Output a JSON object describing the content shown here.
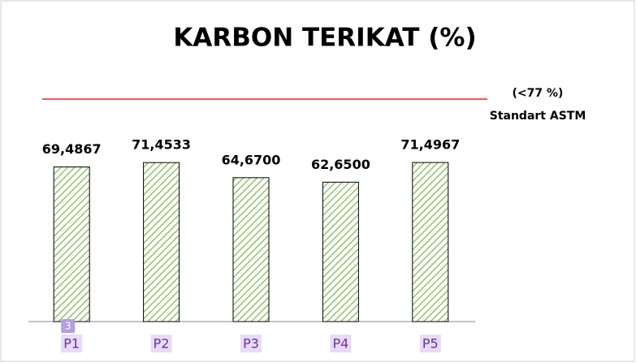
{
  "chart_data": {
    "type": "bar",
    "title": "KARBON TERIKAT (%)",
    "categories": [
      "P1",
      "P2",
      "P3",
      "P4",
      "P5"
    ],
    "values": [
      69.4867,
      71.4533,
      64.67,
      62.65,
      71.4967
    ],
    "value_labels": [
      "69,4867",
      "71,4533",
      "64,6700",
      "62,6500",
      "71,4967"
    ],
    "color": "#8fc46a",
    "ylim": [
      0,
      100
    ],
    "annotations": [
      "(<77 %)",
      "Standart ASTM"
    ],
    "reference_line_color": "#e8242a"
  },
  "overlay_badge": "3"
}
